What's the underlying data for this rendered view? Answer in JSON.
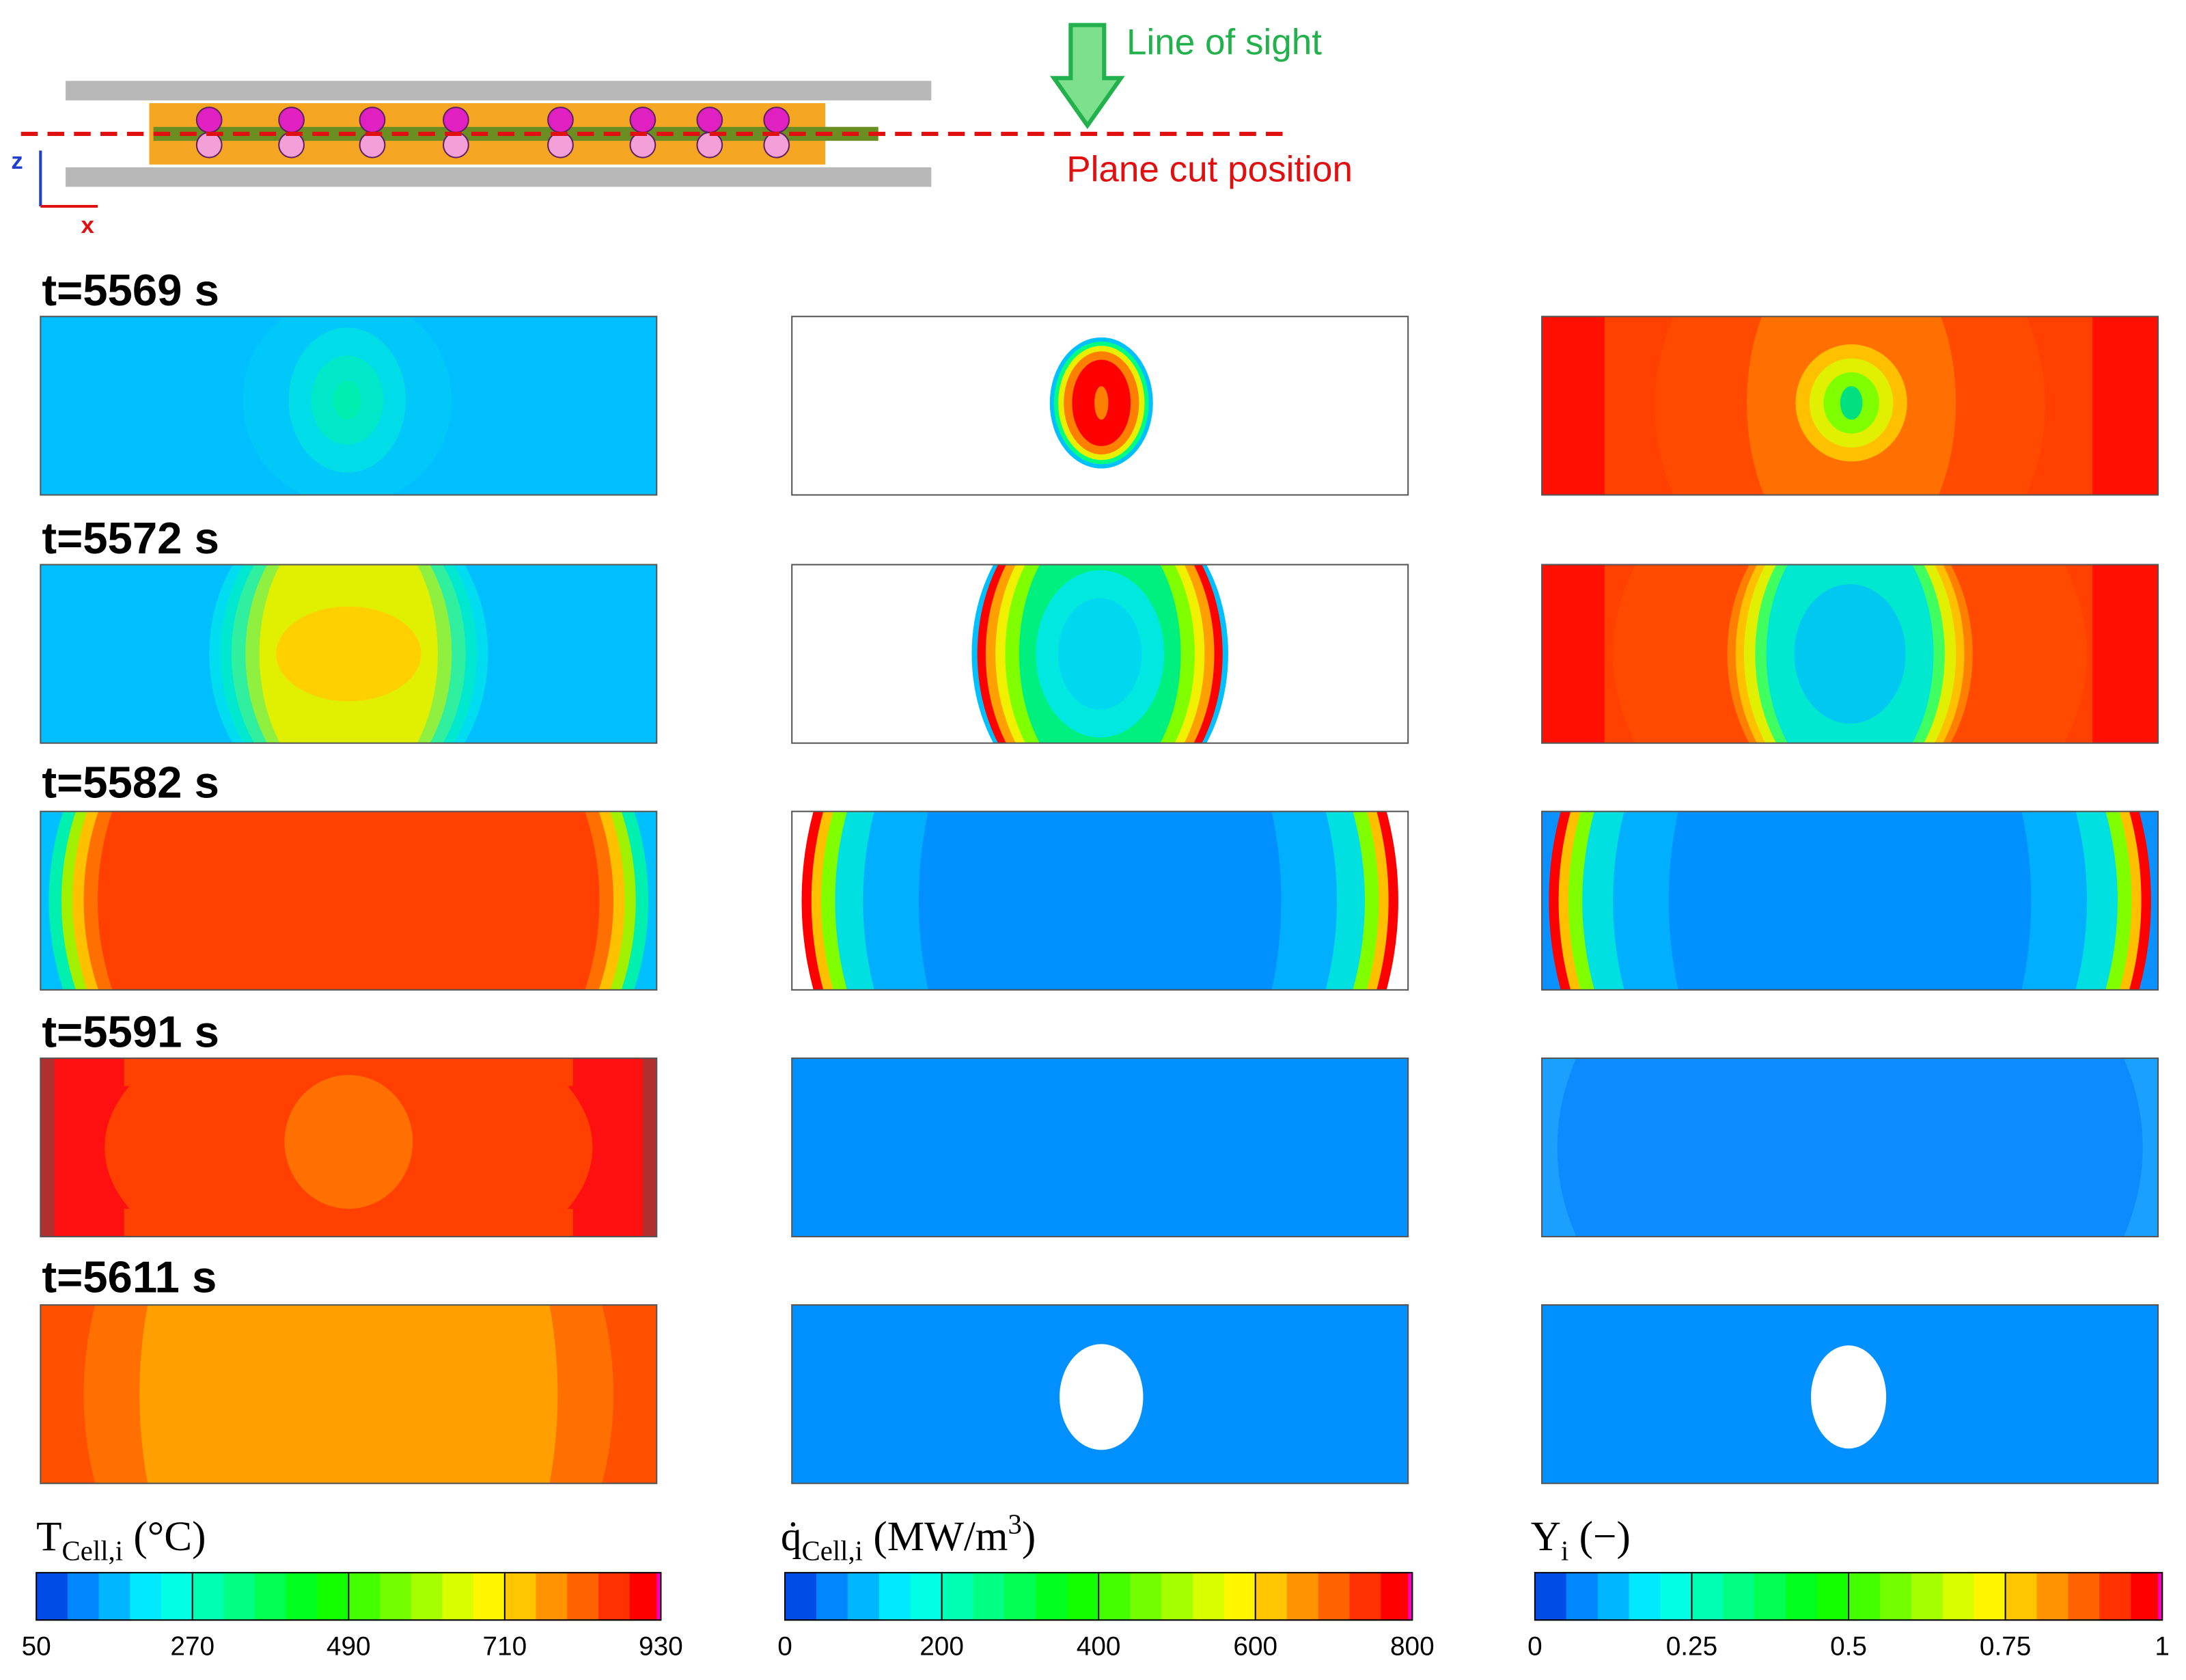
{
  "schematic": {
    "line_of_sight": "Line of sight",
    "plane_cut": "Plane cut position",
    "axis_z": "z",
    "axis_x": "x"
  },
  "time_labels": [
    "t=5569 s",
    "t=5572 s",
    "t=5582 s",
    "t=5591 s",
    "t=5611 s"
  ],
  "colorbars": [
    {
      "title": {
        "symbol": "T",
        "subscript": "Cell,i",
        "unit": " (°C)"
      },
      "ticks": [
        "50",
        "270",
        "490",
        "710",
        "930"
      ]
    },
    {
      "title": {
        "symbol": "q̇",
        "subscript": "Cell,i",
        "unit": " (MW/m",
        "superscript": "3",
        "unit_end": ")"
      },
      "ticks": [
        "0",
        "200",
        "400",
        "600",
        "800"
      ]
    },
    {
      "title": {
        "symbol": "Y",
        "subscript": "i",
        "unit": " (−)"
      },
      "ticks": [
        "0",
        "0.25",
        "0.5",
        "0.75",
        "1"
      ]
    }
  ]
}
